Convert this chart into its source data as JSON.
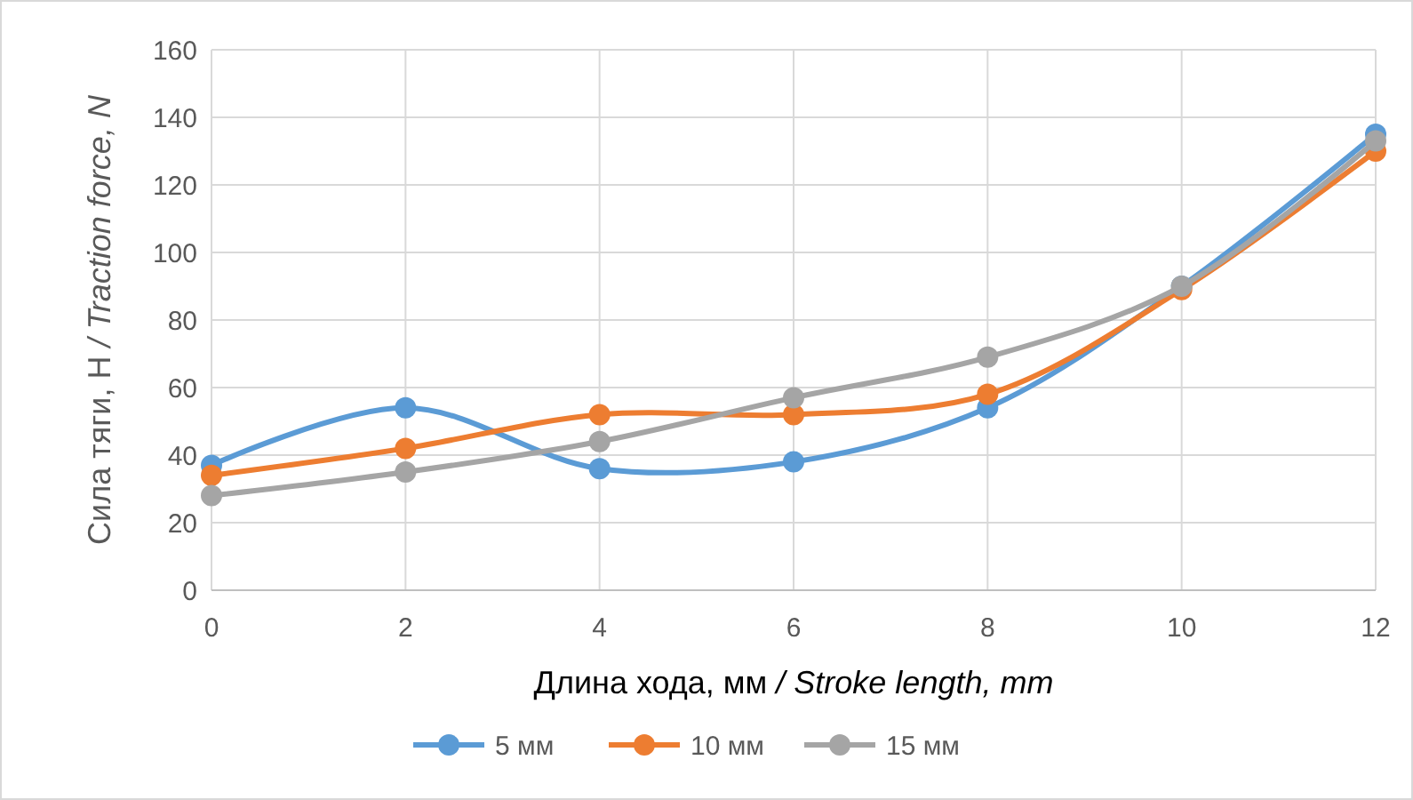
{
  "chart_data": {
    "type": "line",
    "xlabel": "Длина хода, мм / Stroke length, mm",
    "ylabel": "Сила тяги, Н / Traction force, N",
    "x": [
      0,
      2,
      4,
      6,
      8,
      10,
      12
    ],
    "series": [
      {
        "name": "5 мм",
        "color": "#5b9bd5",
        "values": [
          37,
          54,
          36,
          38,
          54,
          90,
          135
        ]
      },
      {
        "name": "10 мм",
        "color": "#ed7d31",
        "values": [
          34,
          42,
          52,
          52,
          58,
          89,
          130
        ]
      },
      {
        "name": "15 мм",
        "color": "#a5a5a5",
        "values": [
          28,
          35,
          44,
          57,
          69,
          90,
          133
        ]
      }
    ],
    "xlim": [
      0,
      12
    ],
    "xticks": [
      0,
      2,
      4,
      6,
      8,
      10,
      12
    ],
    "ylim": [
      0,
      160
    ],
    "yticks": [
      0,
      20,
      40,
      60,
      80,
      100,
      120,
      140,
      160
    ],
    "grid": true,
    "legend": "bottom",
    "marker": "circle",
    "line_style": "solid"
  }
}
